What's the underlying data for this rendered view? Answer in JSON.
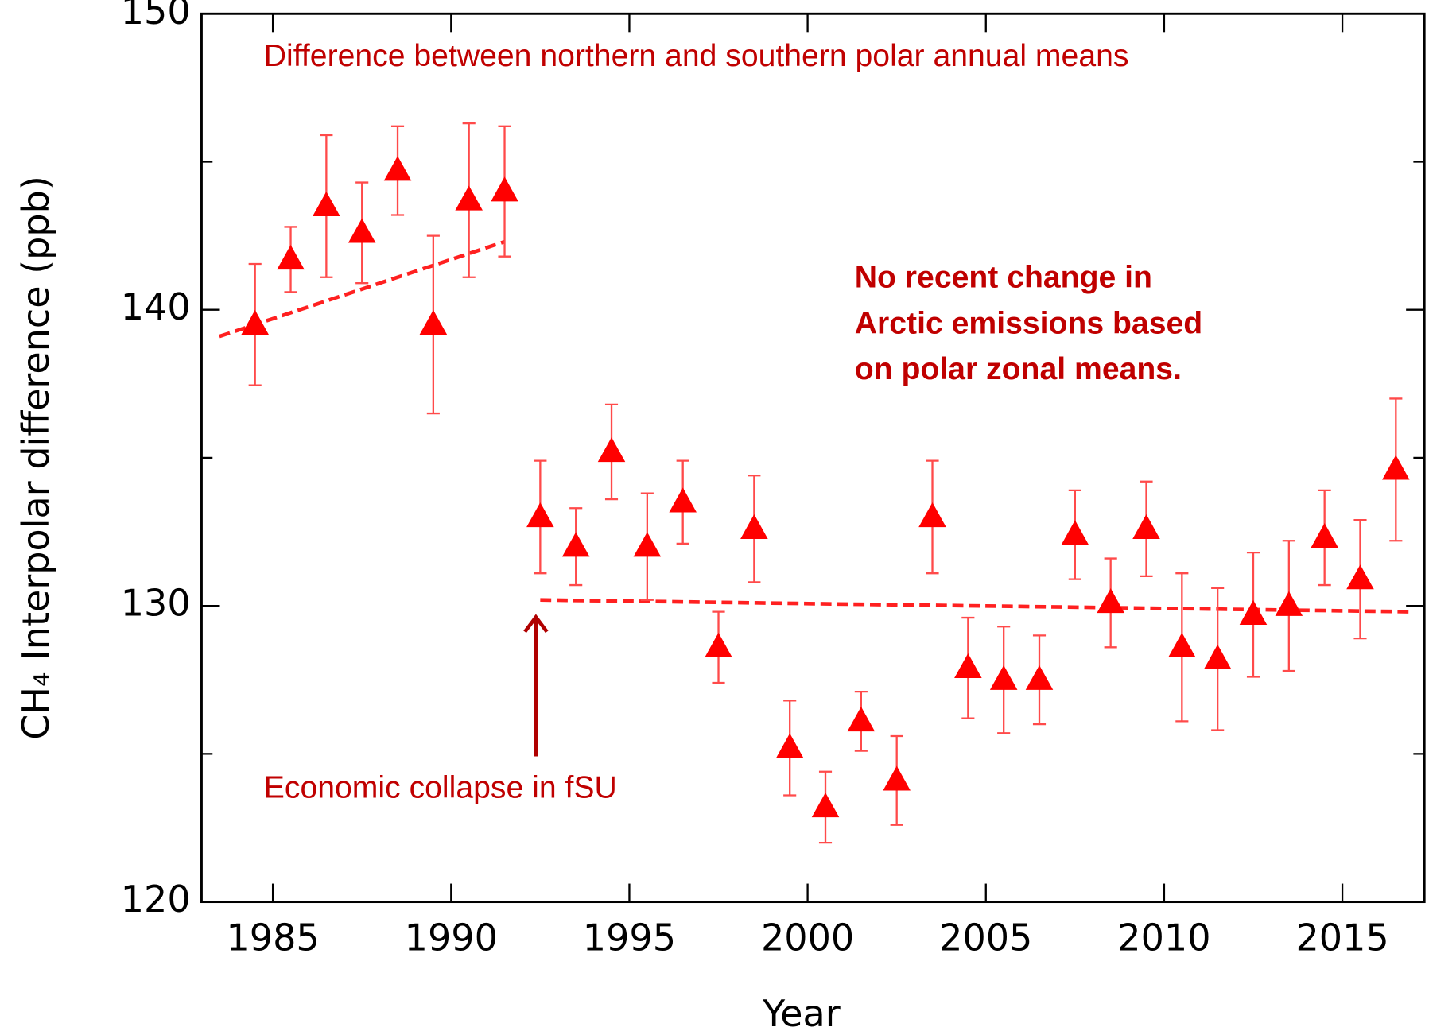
{
  "chart_data": {
    "type": "scatter",
    "title": "Difference between northern and southern polar annual means",
    "x_label": "Year",
    "y_label": "CH₄ Interpolar difference (ppb)",
    "annotations": [
      "No recent change in",
      "Arctic emissions based",
      "on polar zonal means."
    ],
    "arrow_label": "Economic collapse in fSU",
    "xlim": [
      1983,
      2017.3
    ],
    "xticks": [
      1985,
      1990,
      1995,
      2000,
      2005,
      2010,
      2015
    ],
    "ylim": [
      120,
      150
    ],
    "yticks": [
      120,
      130,
      140,
      150
    ],
    "yminorticks": [
      125,
      135,
      145
    ],
    "series": [
      {
        "color": "#ff0000",
        "error_color": "#ff4a4a",
        "x": [
          1984.5,
          1985.5,
          1986.5,
          1987.5,
          1988.5,
          1989.5,
          1990.5,
          1991.5,
          1992.5,
          1993.5,
          1994.5,
          1995.5,
          1996.5,
          1997.5,
          1998.5,
          1999.5,
          2000.5,
          2001.5,
          2002.5,
          2003.5,
          2004.5,
          2005.5,
          2006.5,
          2007.5,
          2008.5,
          2009.5,
          2010.5,
          2011.5,
          2012.5,
          2013.5,
          2014.5,
          2015.5,
          2016.5
        ],
        "values": [
          139.5,
          141.7,
          143.5,
          142.6,
          144.7,
          139.5,
          143.7,
          144.0,
          133.0,
          132.0,
          135.2,
          132.0,
          133.5,
          128.6,
          132.6,
          125.2,
          123.2,
          126.1,
          124.1,
          133.0,
          127.9,
          127.5,
          127.5,
          132.4,
          130.1,
          132.6,
          128.6,
          128.2,
          129.7,
          130.0,
          132.3,
          130.9,
          134.6
        ],
        "errors": [
          2.05,
          1.1,
          2.4,
          1.7,
          1.5,
          3.0,
          2.6,
          2.2,
          1.9,
          1.3,
          1.6,
          1.8,
          1.4,
          1.2,
          1.8,
          1.6,
          1.2,
          1.0,
          1.5,
          1.9,
          1.7,
          1.8,
          1.5,
          1.5,
          1.5,
          1.6,
          2.5,
          2.4,
          2.1,
          2.2,
          1.6,
          2.0,
          2.4
        ]
      }
    ],
    "trend_lines": [
      {
        "color": "#ff2020",
        "x": [
          1983.5,
          1991.5
        ],
        "values": [
          139.1,
          142.3
        ]
      },
      {
        "color": "#ff2020",
        "x": [
          1992.5,
          2017.0
        ],
        "values": [
          130.2,
          129.8
        ]
      }
    ]
  }
}
